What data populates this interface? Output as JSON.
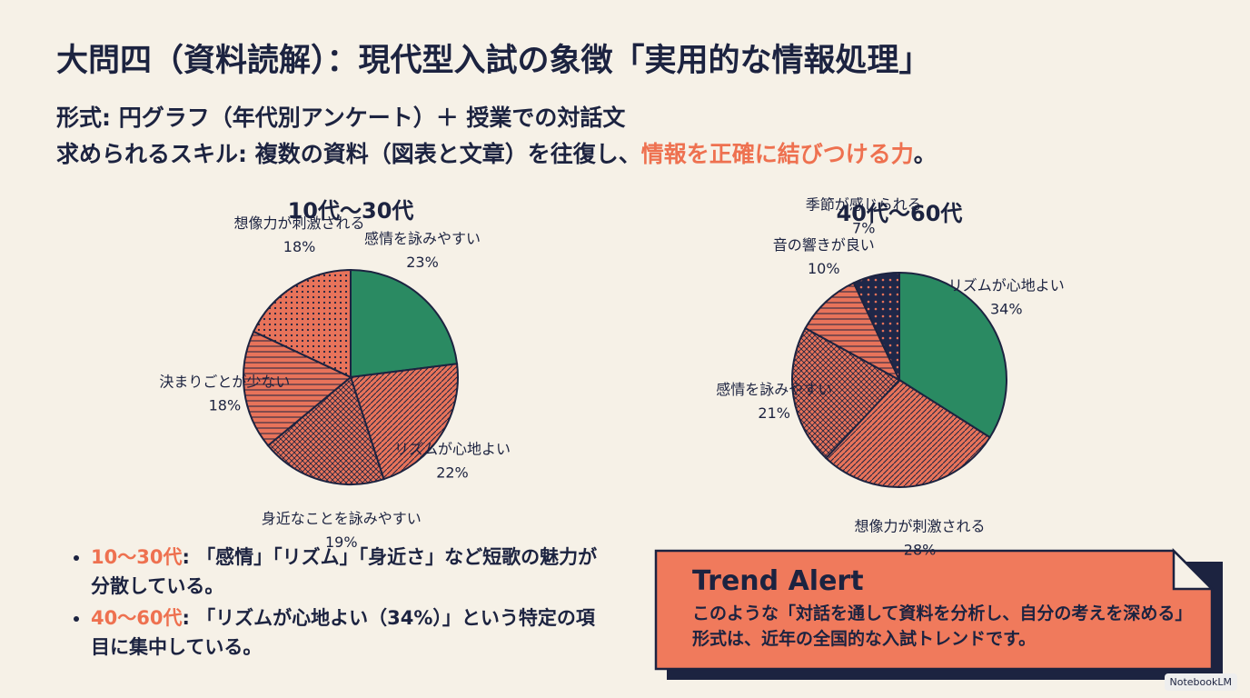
{
  "header": {
    "title": "大問四（資料読解）：現代型入試の象徴「実用的な情報処理」",
    "format": "形式: 円グラフ（年代別アンケート）＋ 授業での対話文",
    "skill": "求められるスキル: 複数の資料（図表と文章）を往復し、",
    "skill_highlight": "情報を正確に結びつける力",
    "skill_end": "。"
  },
  "chart_data": [
    {
      "type": "pie",
      "title": "10代〜30代",
      "categories": [
        "感情を詠みやすい",
        "リズムが心地よい",
        "身近なことを詠みやすい",
        "決まりごとが少ない",
        "想像力が刺激される"
      ],
      "values": [
        23,
        22,
        19,
        18,
        18
      ],
      "value_labels": [
        "23%",
        "22%",
        "19%",
        "18%",
        "18%"
      ],
      "colors": [
        "#2a8a62",
        "#e8735a",
        "#e8735a",
        "#e8735a",
        "#e8735a"
      ]
    },
    {
      "type": "pie",
      "title": "40代〜60代",
      "categories": [
        "リズムが心地よい",
        "想像力が刺激される",
        "感情を詠みやすい",
        "音の響きが良い",
        "季節が感じられる"
      ],
      "values": [
        34,
        28,
        21,
        10,
        7
      ],
      "value_labels": [
        "34%",
        "28%",
        "21%",
        "10%",
        "7%"
      ],
      "colors": [
        "#2a8a62",
        "#e8735a",
        "#e8735a",
        "#e8735a",
        "#1f2748"
      ]
    }
  ],
  "bullets": [
    {
      "label": "10〜30代",
      "text": ": 「感情」「リズム」「身近さ」など短歌の魅力が分散している。"
    },
    {
      "label": "40〜60代",
      "text": ": 「リズムが心地よい（34%）」という特定の項目に集中している。"
    }
  ],
  "alert": {
    "title": "Trend Alert",
    "text": "このような「対話を通して資料を分析し、自分の考えを深める」形式は、近年の全国的な入試トレンドです。"
  },
  "footer": {
    "brand": "NotebookLM"
  }
}
